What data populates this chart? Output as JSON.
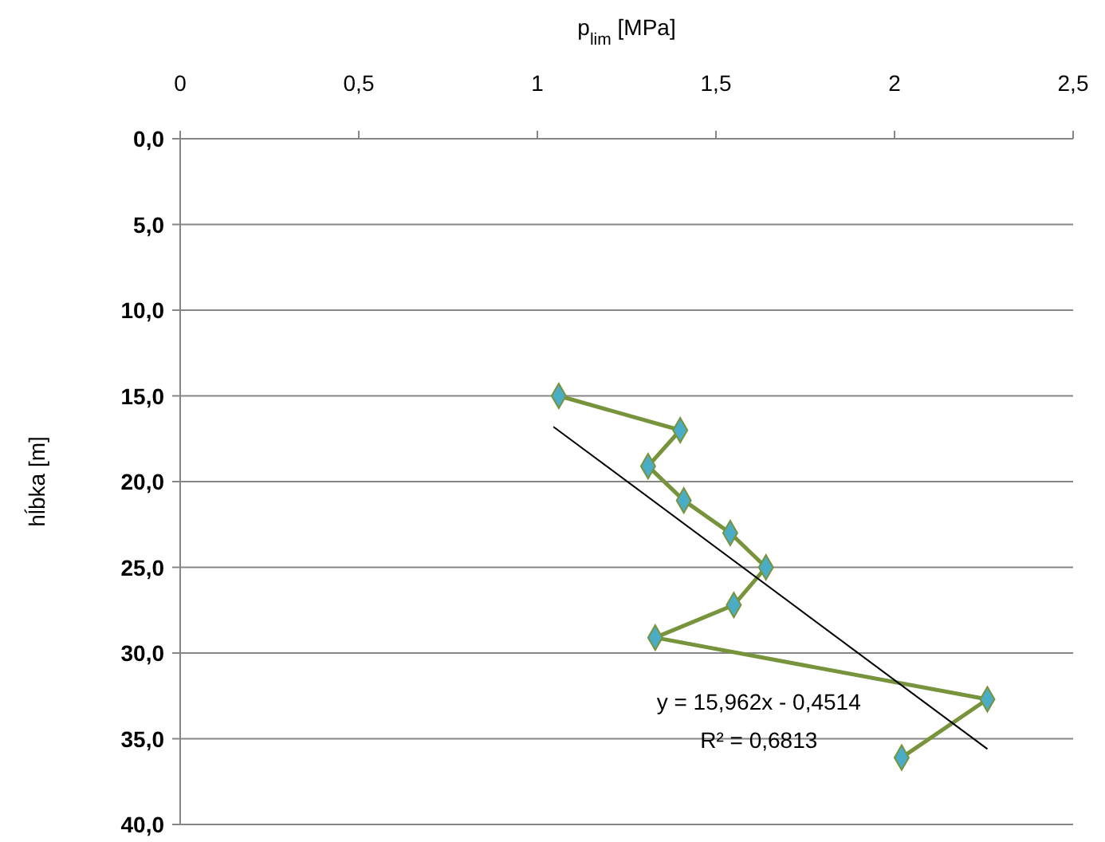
{
  "chart_data": {
    "type": "line",
    "xlabel": "p$_{lim}$ [MPa]",
    "ylabel": "hĺbka [m]",
    "xlim": [
      0,
      2.5
    ],
    "xticks": [
      0,
      {
        "value": 0.5,
        "label": "0,5"
      },
      1,
      {
        "value": 1.5,
        "label": "1,5"
      },
      2,
      {
        "value": 2.5,
        "label": "2,5"
      }
    ],
    "ylim": [
      40,
      0
    ],
    "yticks": [
      {
        "value": 0,
        "label": "0,0"
      },
      {
        "value": 5,
        "label": "5,0"
      },
      {
        "value": 10,
        "label": "10,0"
      },
      {
        "value": 15,
        "label": "15,0"
      },
      {
        "value": 20,
        "label": "20,0"
      },
      {
        "value": 25,
        "label": "25,0"
      },
      {
        "value": 30,
        "label": "30,0"
      },
      {
        "value": 35,
        "label": "35,0"
      },
      {
        "value": 40,
        "label": "40,0"
      }
    ],
    "grid": "y",
    "series": [
      {
        "color": "#77933c",
        "marker": "diamond",
        "x": [
          1.06,
          1.4,
          1.31,
          1.41,
          1.54,
          1.64,
          1.55,
          1.33,
          2.26,
          2.02
        ],
        "values": [
          15.0,
          17.0,
          19.1,
          21.1,
          23.0,
          25.0,
          27.2,
          29.1,
          32.7,
          36.1
        ]
      },
      {
        "color": "#000000",
        "marker": "none",
        "x": [
          1.045,
          2.26
        ],
        "values": [
          16.8,
          35.6
        ]
      }
    ],
    "annotations": [
      "y = 15,962x - 0,4514",
      "R² = 0,6813"
    ]
  }
}
